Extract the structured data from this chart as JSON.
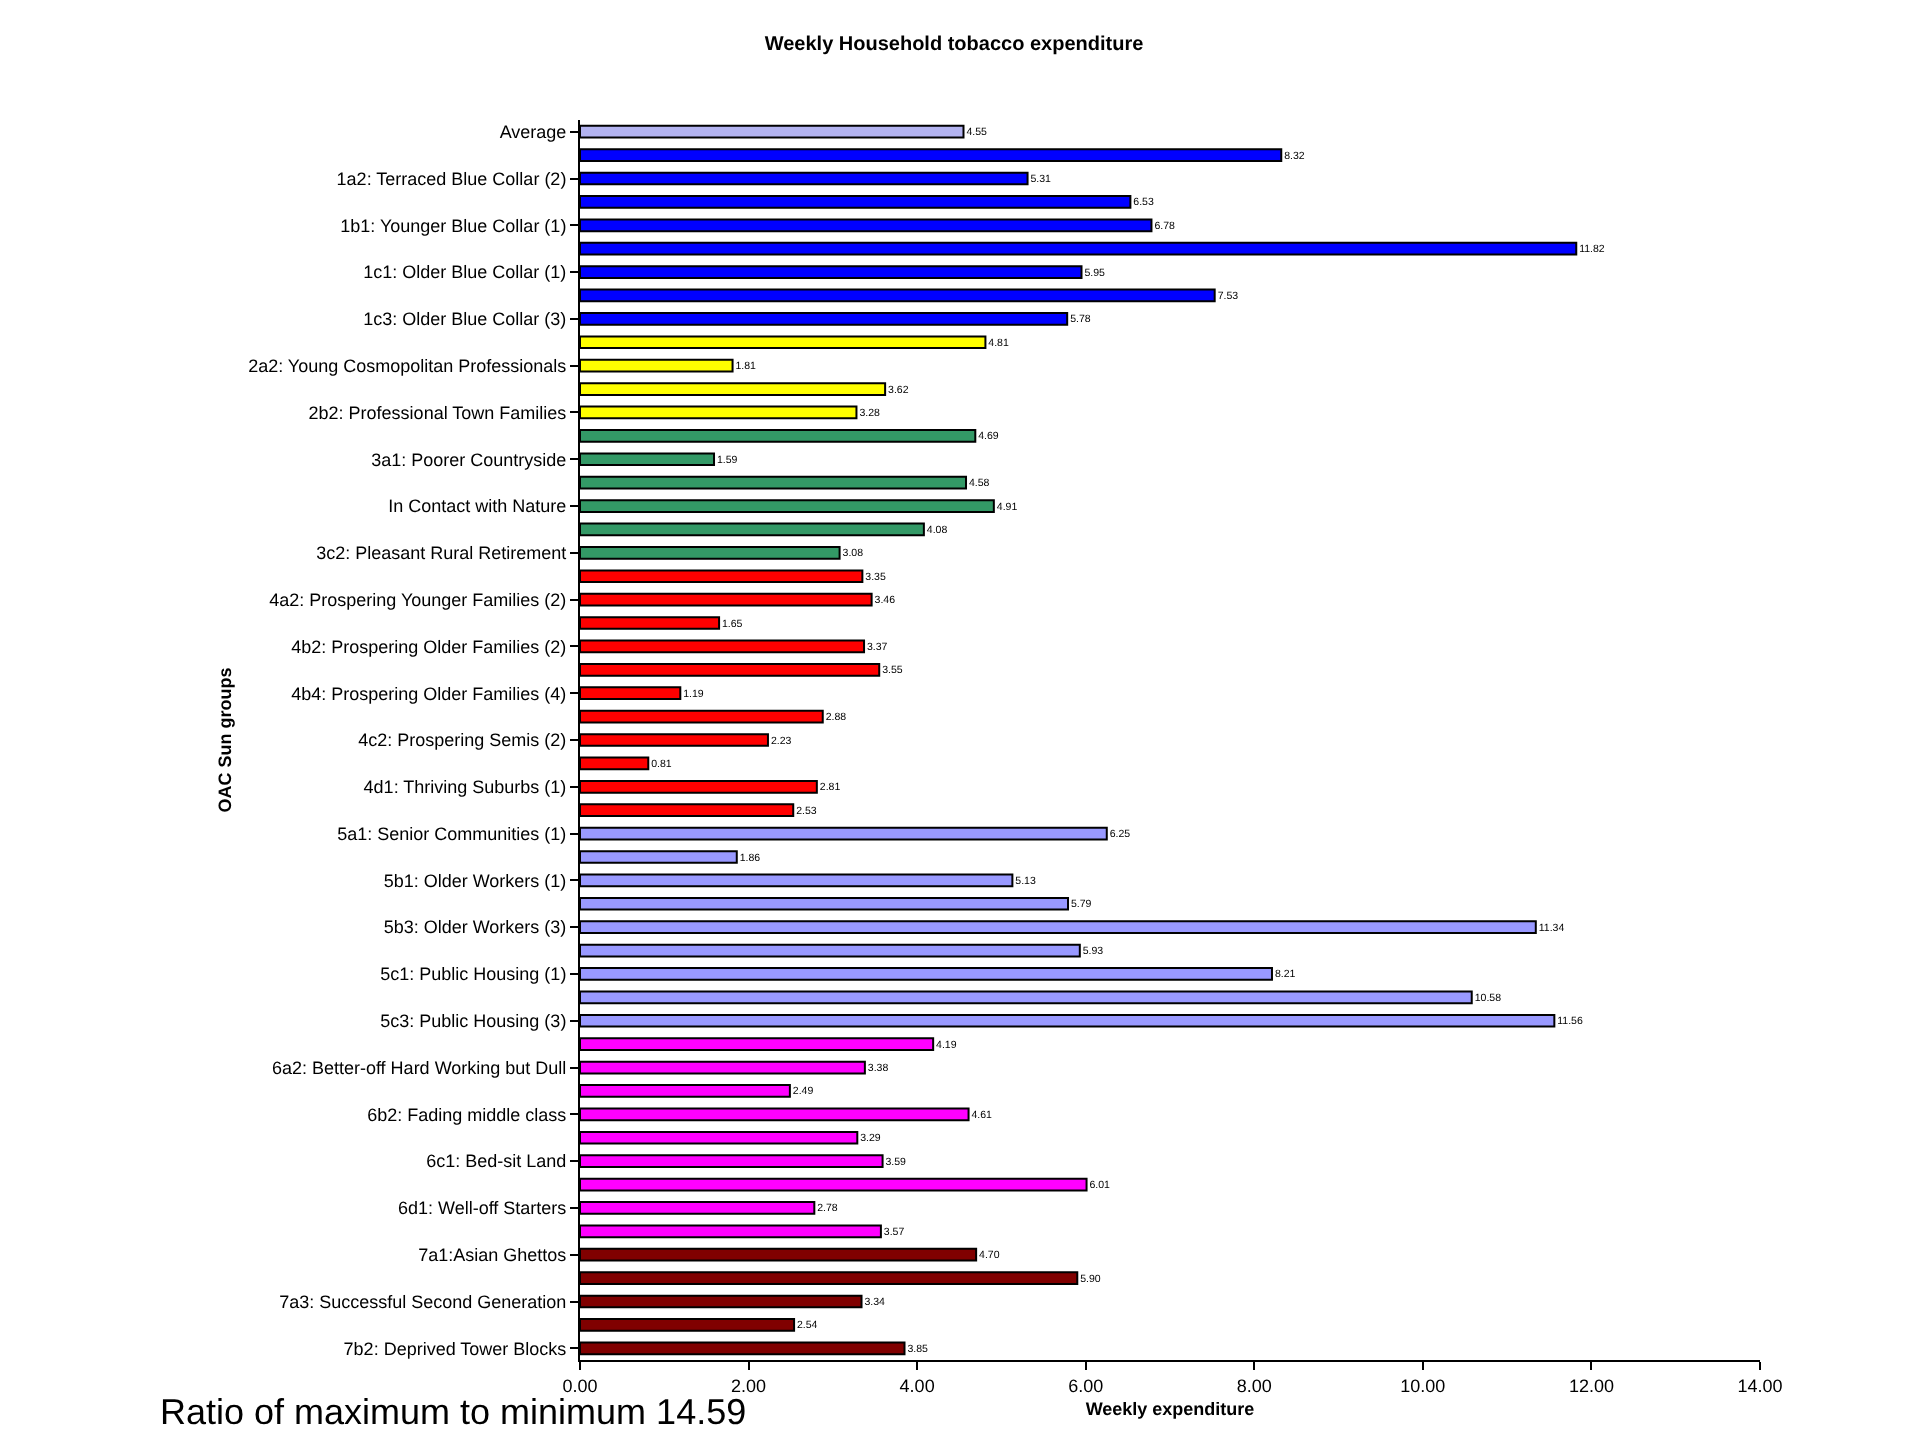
{
  "chart_data": {
    "type": "bar",
    "orientation": "horizontal",
    "title": "Weekly Household tobacco expenditure",
    "xlabel": "Weekly expenditure",
    "ylabel": "OAC Sun groups",
    "categories": [
      "Average",
      null,
      "1a2: Terraced Blue Collar (2)",
      null,
      "1b1: Younger Blue Collar (1)",
      null,
      "1c1: Older Blue Collar (1)",
      null,
      "1c3: Older Blue Collar (3)",
      null,
      "2a2: Young Cosmopolitan Professionals",
      null,
      "2b2: Professional Town Families",
      null,
      "3a1: Poorer Countryside",
      null,
      "In Contact with Nature",
      null,
      "3c2: Pleasant Rural Retirement",
      null,
      "4a2: Prospering Younger Families (2)",
      null,
      "4b2: Prospering Older Families (2)",
      null,
      "4b4: Prospering Older Families (4)",
      null,
      "4c2: Prospering Semis (2)",
      null,
      "4d1: Thriving Suburbs (1)",
      null,
      "5a1: Senior Communities (1)",
      null,
      "5b1: Older Workers (1)",
      null,
      "5b3: Older Workers (3)",
      null,
      "5c1: Public Housing (1)",
      null,
      "5c3: Public Housing (3)",
      null,
      "6a2: Better-off Hard Working but Dull",
      null,
      "6b2: Fading middle class",
      null,
      "6c1: Bed-sit Land",
      null,
      "6d1: Well-off Starters",
      null,
      "7a1:Asian Ghettos",
      null,
      "7a3: Successful Second Generation",
      null,
      "7b2: Deprived Tower Blocks"
    ],
    "values": [
      4.55,
      8.32,
      5.31,
      6.53,
      6.78,
      11.82,
      5.95,
      7.53,
      5.78,
      4.81,
      1.81,
      3.62,
      3.28,
      4.69,
      1.59,
      4.58,
      4.91,
      4.08,
      3.08,
      3.35,
      3.46,
      1.65,
      3.37,
      3.55,
      1.19,
      2.88,
      2.23,
      0.81,
      2.81,
      2.53,
      6.25,
      1.86,
      5.13,
      5.79,
      11.34,
      5.93,
      8.21,
      10.58,
      11.56,
      4.19,
      3.38,
      2.49,
      4.61,
      3.29,
      3.59,
      6.01,
      2.78,
      3.57,
      4.7,
      5.9,
      3.34,
      2.54,
      3.85
    ],
    "value_labels": [
      "4.55",
      "8.32",
      "5.31",
      "6.53",
      "6.78",
      "11.82",
      "5.95",
      "7.53",
      "5.78",
      "4.81",
      "1.81",
      "3.62",
      "3.28",
      "4.69",
      "1.59",
      "4.58",
      "4.91",
      "4.08",
      "3.08",
      "3.35",
      "3.46",
      "1.65",
      "3.37",
      "3.55",
      "1.19",
      "2.88",
      "2.23",
      "0.81",
      "2.81",
      "2.53",
      "6.25",
      "1.86",
      "5.13",
      "5.79",
      "11.34",
      "5.93",
      "8.21",
      "10.58",
      "11.56",
      "4.19",
      "3.38",
      "2.49",
      "4.61",
      "3.29",
      "3.59",
      "6.01",
      "2.78",
      "3.57",
      "4.70",
      "5.90",
      "3.34",
      "2.54",
      "3.85"
    ],
    "colors": [
      "#b3b3f0",
      "#0000ff",
      "#0000ff",
      "#0000ff",
      "#0000ff",
      "#0000ff",
      "#0000ff",
      "#0000ff",
      "#0000ff",
      "#ffff00",
      "#ffff00",
      "#ffff00",
      "#ffff00",
      "#339966",
      "#339966",
      "#339966",
      "#339966",
      "#339966",
      "#339966",
      "#ff0000",
      "#ff0000",
      "#ff0000",
      "#ff0000",
      "#ff0000",
      "#ff0000",
      "#ff0000",
      "#ff0000",
      "#ff0000",
      "#ff0000",
      "#ff0000",
      "#9999ff",
      "#9999ff",
      "#9999ff",
      "#9999ff",
      "#9999ff",
      "#9999ff",
      "#9999ff",
      "#9999ff",
      "#9999ff",
      "#ff00ff",
      "#ff00ff",
      "#ff00ff",
      "#ff00ff",
      "#ff00ff",
      "#ff00ff",
      "#ff00ff",
      "#ff00ff",
      "#ff00ff",
      "#800000",
      "#800000",
      "#800000",
      "#800000",
      "#800000"
    ],
    "xlim": [
      0,
      14
    ],
    "xticks": [
      {
        "value": 0,
        "label": "0.00"
      },
      {
        "value": 2,
        "label": "2.00"
      },
      {
        "value": 4,
        "label": "4.00"
      },
      {
        "value": 6,
        "label": "6.00"
      },
      {
        "value": 8,
        "label": "8.00"
      },
      {
        "value": 10,
        "label": "10.00"
      },
      {
        "value": 12,
        "label": "12.00"
      },
      {
        "value": 14,
        "label": "14.00"
      }
    ],
    "grid": false,
    "legend": false,
    "annotations": [
      "Ratio of maximum to minimum 14.59"
    ]
  }
}
